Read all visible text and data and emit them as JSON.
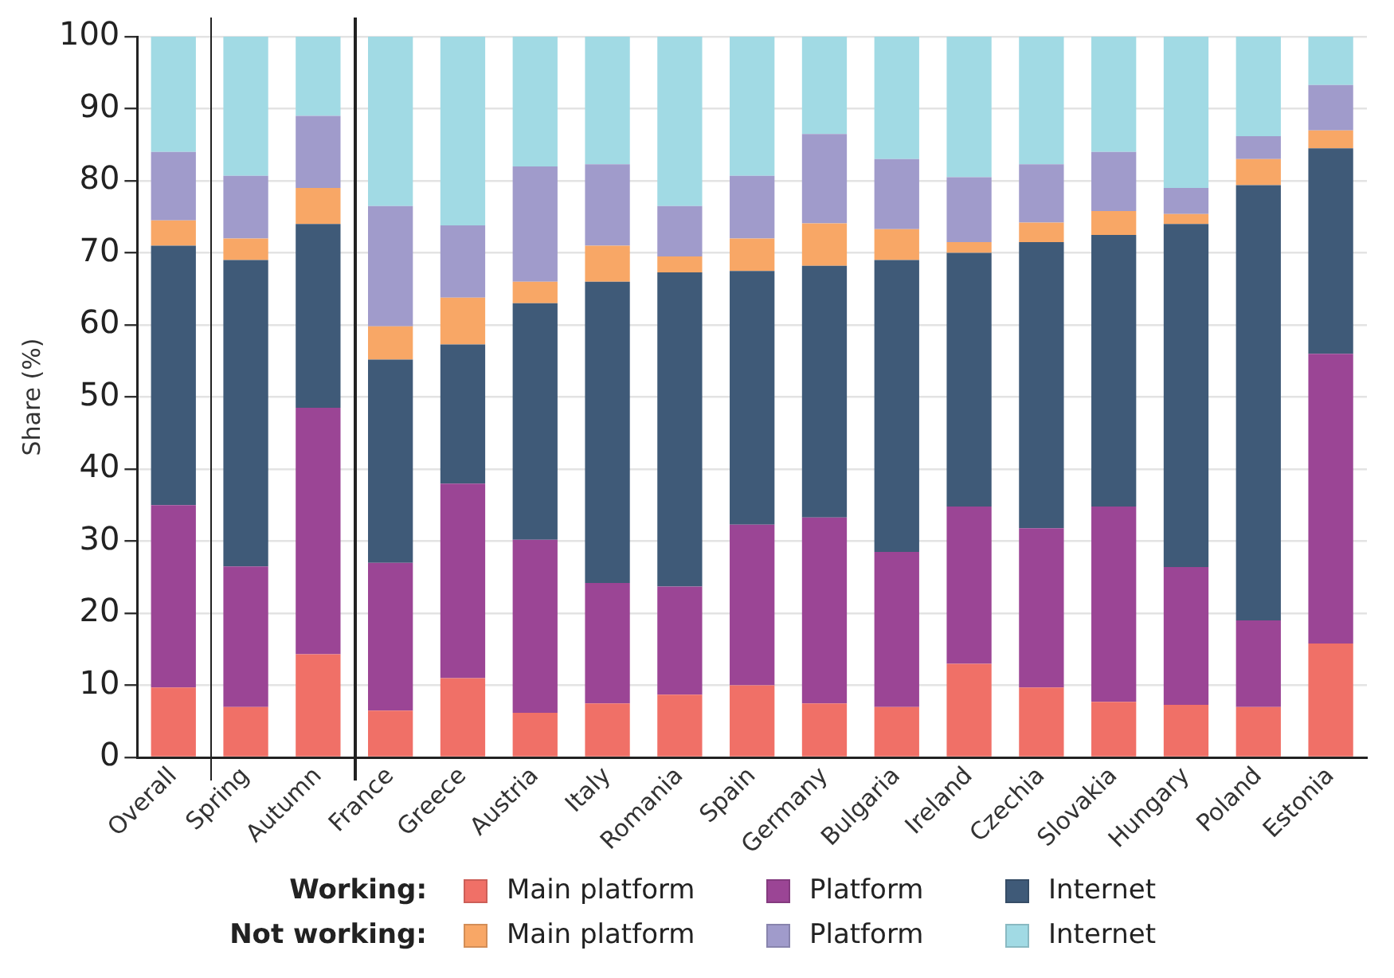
{
  "chart_data": {
    "type": "bar",
    "stacked": true,
    "ylabel": "Share (%)",
    "categories": [
      "Overall",
      "Spring",
      "Autumn",
      "France",
      "Greece",
      "Austria",
      "Italy",
      "Romania",
      "Spain",
      "Germany",
      "Bulgaria",
      "Ireland",
      "Czechia",
      "Slovakia",
      "Hungary",
      "Poland",
      "Estonia"
    ],
    "series": [
      {
        "name": "Main platform",
        "color": "#f07067",
        "values": [
          9.7,
          7,
          14.3,
          6.5,
          11,
          6.2,
          7.5,
          8.7,
          10,
          7.5,
          7,
          13,
          9.7,
          7.7,
          7.3,
          7,
          15.8
        ]
      },
      {
        "name": "Platform",
        "color": "#9b4595",
        "values": [
          25.3,
          19.5,
          34.2,
          20.5,
          27,
          24,
          16.7,
          15,
          22.3,
          25.8,
          21.5,
          21.8,
          22.1,
          27.1,
          19.1,
          12,
          40.2
        ]
      },
      {
        "name": "Internet",
        "color": "#3f5a78",
        "values": [
          36,
          42.5,
          25.5,
          28.2,
          19.3,
          32.8,
          41.8,
          43.6,
          35.2,
          34.9,
          40.5,
          35.2,
          39.7,
          37.7,
          47.6,
          60.4,
          28.5
        ]
      },
      {
        "name": "Main platform",
        "color": "#f8a766",
        "values": [
          3.5,
          3,
          5,
          4.6,
          6.5,
          3,
          5,
          2.2,
          4.5,
          5.9,
          4.3,
          1.5,
          2.7,
          3.3,
          1.4,
          3.6,
          2.5
        ]
      },
      {
        "name": "Platform",
        "color": "#a09bcb",
        "values": [
          9.5,
          8.7,
          10,
          16.7,
          10,
          16,
          11.3,
          7,
          8.7,
          12.4,
          9.7,
          9,
          8.1,
          8.2,
          3.6,
          3.2,
          6.3
        ]
      },
      {
        "name": "Internet",
        "color": "#a1dae4",
        "values": [
          16,
          19.3,
          11,
          23.5,
          26.2,
          18,
          17.7,
          23.5,
          19.3,
          13.5,
          17,
          19.5,
          17.7,
          16,
          21,
          13.8,
          6.7
        ]
      }
    ],
    "annotations": [
      "Working:",
      "Not working:"
    ],
    "ylim": [
      0,
      100
    ],
    "yticks": [
      0,
      10,
      20,
      30,
      40,
      50,
      60,
      70,
      80,
      90,
      100
    ],
    "grid": "y",
    "legend": "bottom"
  }
}
